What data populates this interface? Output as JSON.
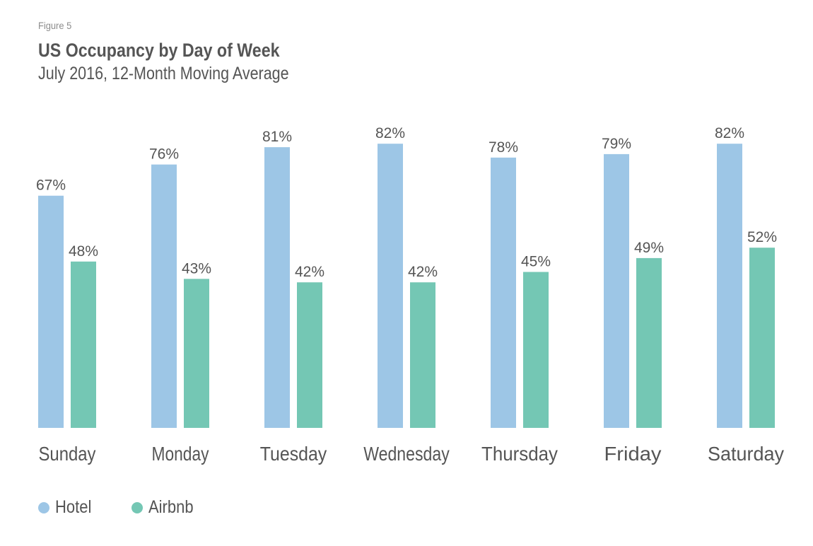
{
  "figure_label": "Figure 5",
  "title": "US Occupancy by Day of Week",
  "subtitle": "July 2016, 12-Month Moving Average",
  "colors": {
    "hotel": "#9dc6e6",
    "airbnb": "#74c7b4",
    "text": "#555555"
  },
  "legend": [
    {
      "label": "Hotel",
      "color": "#9dc6e6"
    },
    {
      "label": "Airbnb",
      "color": "#74c7b4"
    }
  ],
  "chart_data": {
    "type": "bar",
    "categories": [
      "Sunday",
      "Monday",
      "Tuesday",
      "Wednesday",
      "Thursday",
      "Friday",
      "Saturday"
    ],
    "series": [
      {
        "name": "Hotel",
        "values": [
          67,
          76,
          81,
          82,
          78,
          79,
          82
        ],
        "labels": [
          "67%",
          "76%",
          "81%",
          "82%",
          "78%",
          "79%",
          "82%"
        ]
      },
      {
        "name": "Airbnb",
        "values": [
          48,
          43,
          42,
          42,
          45,
          49,
          52
        ],
        "labels": [
          "48%",
          "43%",
          "42%",
          "42%",
          "45%",
          "49%",
          "52%"
        ]
      }
    ],
    "title": "US Occupancy by Day of Week",
    "subtitle": "July 2016, 12-Month Moving Average",
    "ylim": [
      0,
      100
    ],
    "grid": false,
    "legend_position": "bottom-left"
  }
}
